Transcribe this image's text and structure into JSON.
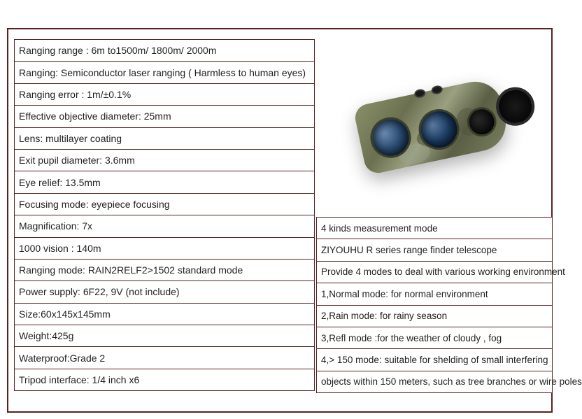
{
  "border_color": "#5a2020",
  "specs": [
    "Ranging range : 6m to1500m/ 1800m/ 2000m",
    "Ranging: Semiconductor laser ranging ( Harmless to human eyes)",
    "Ranging error : 1m/±0.1%",
    "Effective objective diameter: 25mm",
    "Lens: multilayer coating",
    "Exit pupil diameter: 3.6mm",
    "Eye relief: 13.5mm",
    "Focusing mode: eyepiece focusing",
    "Magnification: 7x",
    "1000 vision : 140m",
    "Ranging mode: RAIN2RELF2>1502 standard mode",
    "Power supply: 6F22, 9V (not include)",
    "Size:60x145x145mm",
    "Weight:425g",
    "Waterproof:Grade 2",
    "Tripod interface: 1/4 inch x6"
  ],
  "modes": [
    "4 kinds measurement mode",
    "ZIYOUHU R series range finder telescope",
    "Provide 4 modes to deal with various working environment",
    "1,Normal mode: for normal environment",
    "2,Rain mode: for rainy season",
    "3,Refl mode :for the weather of cloudy , fog",
    "4,> 150 mode: suitable for shelding of small interfering",
    "objects within 150 meters, such as tree branches or wire poles"
  ],
  "product": {
    "type": "laser rangefinder",
    "pattern": "camouflage",
    "lens_tint": "blue",
    "body_colors": [
      "#8a8f6a",
      "#6b7050",
      "#9aa080",
      "#5a5f45"
    ]
  }
}
